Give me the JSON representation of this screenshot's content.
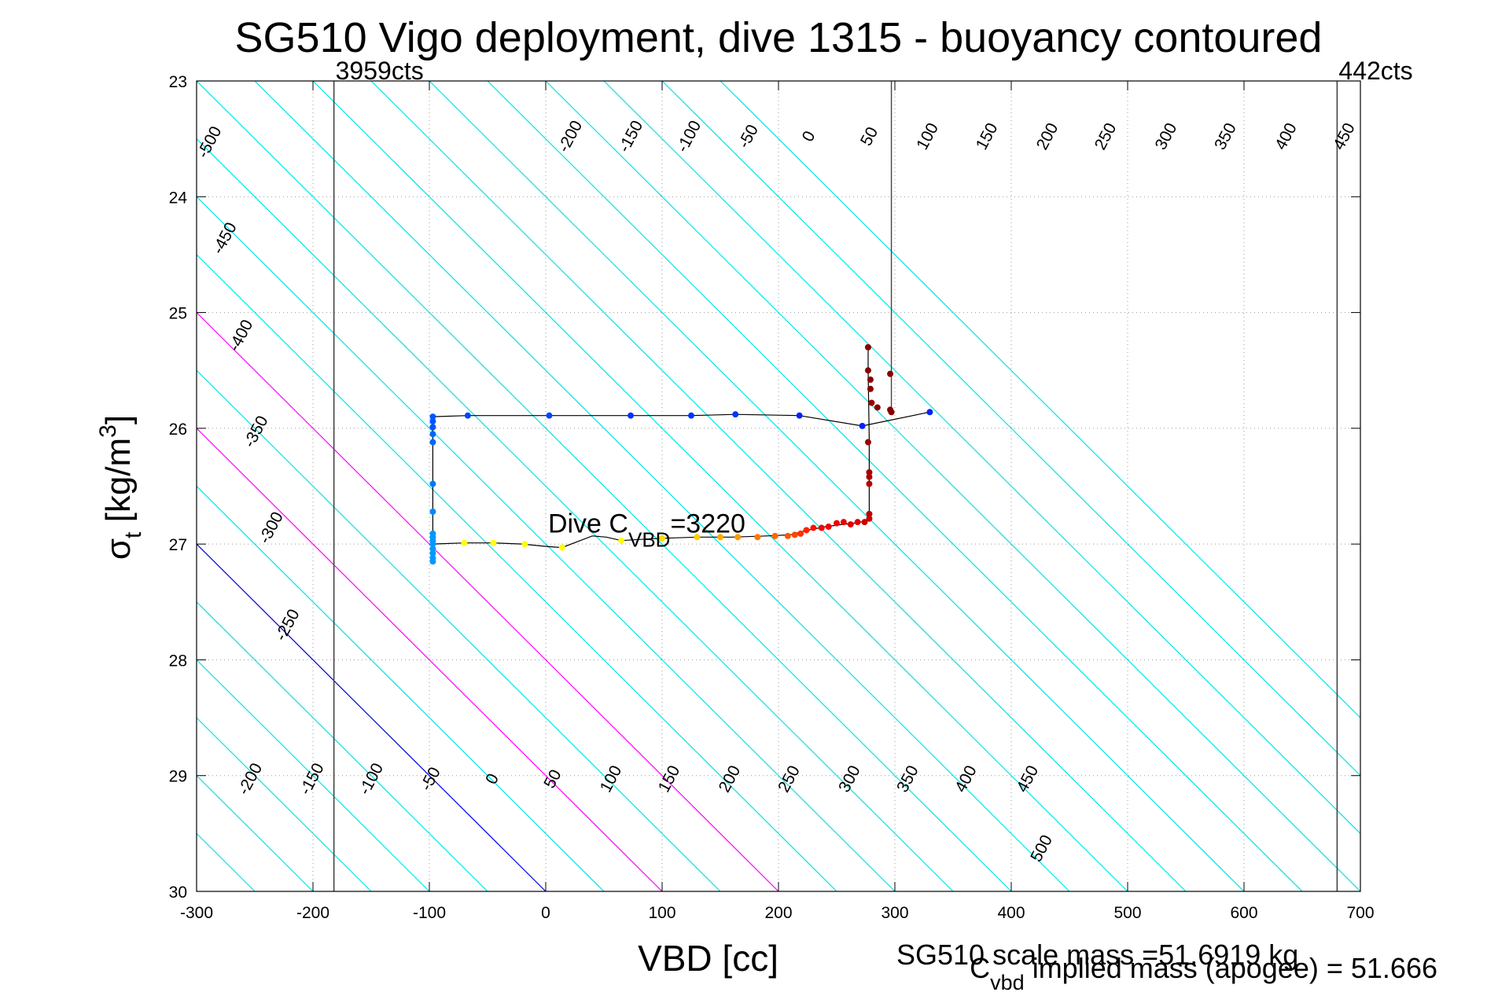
{
  "chart_data": {
    "type": "scatter",
    "title": "SG510 Vigo deployment, dive 1315 - buoyancy contoured",
    "xlabel": "VBD [cc]",
    "ylabel_main": "σ",
    "ylabel_sub": "t",
    "ylabel_rest": " [kg/m",
    "ylabel_sup": "3",
    "ylabel_close": "]",
    "xlim": [
      -300,
      700
    ],
    "ylim": [
      23,
      30
    ],
    "y_reversed": true,
    "grid": true,
    "x_ticks": [
      -300,
      -200,
      -100,
      0,
      100,
      200,
      300,
      400,
      500,
      600,
      700
    ],
    "y_ticks": [
      23,
      24,
      25,
      26,
      27,
      28,
      29,
      30
    ],
    "colors": {
      "contour": "#00e5e5",
      "zero_contour": "#0000dd",
      "highlight_contour": "#ff00ff",
      "limit_line": "#444444",
      "profile_line": "#000000"
    },
    "contours": {
      "levels": [
        -550,
        -500,
        -450,
        -400,
        -350,
        -300,
        -250,
        -200,
        -150,
        -100,
        -50,
        0,
        50,
        100,
        150,
        200,
        250,
        300,
        350,
        400,
        450,
        500,
        550,
        600,
        650,
        700,
        750,
        800,
        850
      ],
      "zero_level": 0,
      "highlight_levels": [
        100,
        200
      ],
      "slope_cc_per_sigma": 100,
      "top_labels": [
        {
          "text": "-500",
          "vbd": -285,
          "sigma": 23.55
        },
        {
          "text": "-450",
          "vbd": -272,
          "sigma": 24.38
        },
        {
          "text": "-400",
          "vbd": -258,
          "sigma": 25.22
        },
        {
          "text": "-350",
          "vbd": -245,
          "sigma": 26.05
        },
        {
          "text": "-300",
          "vbd": -232,
          "sigma": 26.88
        },
        {
          "text": "-250",
          "vbd": -218,
          "sigma": 27.72
        },
        {
          "text": "-200",
          "vbd": 25,
          "sigma": 23.5
        },
        {
          "text": "-150",
          "vbd": 77,
          "sigma": 23.5
        },
        {
          "text": "-100",
          "vbd": 127,
          "sigma": 23.5
        },
        {
          "text": "-50",
          "vbd": 178,
          "sigma": 23.5
        },
        {
          "text": "0",
          "vbd": 230,
          "sigma": 23.5
        },
        {
          "text": "50",
          "vbd": 282,
          "sigma": 23.5
        },
        {
          "text": "100",
          "vbd": 332,
          "sigma": 23.5
        },
        {
          "text": "150",
          "vbd": 383,
          "sigma": 23.5
        },
        {
          "text": "200",
          "vbd": 435,
          "sigma": 23.5
        },
        {
          "text": "250",
          "vbd": 485,
          "sigma": 23.5
        },
        {
          "text": "300",
          "vbd": 537,
          "sigma": 23.5
        },
        {
          "text": "350",
          "vbd": 588,
          "sigma": 23.5
        },
        {
          "text": "400",
          "vbd": 640,
          "sigma": 23.5
        },
        {
          "text": "450",
          "vbd": 690,
          "sigma": 23.5
        }
      ],
      "bottom_labels": [
        {
          "text": "-200",
          "vbd": -250,
          "sigma": 29.05
        },
        {
          "text": "-150",
          "vbd": -197,
          "sigma": 29.05
        },
        {
          "text": "-100",
          "vbd": -146,
          "sigma": 29.05
        },
        {
          "text": "-50",
          "vbd": -95,
          "sigma": 29.05
        },
        {
          "text": "0",
          "vbd": -42,
          "sigma": 29.05
        },
        {
          "text": "50",
          "vbd": 10,
          "sigma": 29.05
        },
        {
          "text": "100",
          "vbd": 60,
          "sigma": 29.05
        },
        {
          "text": "150",
          "vbd": 110,
          "sigma": 29.05
        },
        {
          "text": "200",
          "vbd": 162,
          "sigma": 29.05
        },
        {
          "text": "250",
          "vbd": 213,
          "sigma": 29.05
        },
        {
          "text": "300",
          "vbd": 265,
          "sigma": 29.05
        },
        {
          "text": "350",
          "vbd": 315,
          "sigma": 29.05
        },
        {
          "text": "400",
          "vbd": 365,
          "sigma": 29.05
        },
        {
          "text": "450",
          "vbd": 418,
          "sigma": 29.05
        },
        {
          "text": "500",
          "vbd": 430,
          "sigma": 29.65
        }
      ]
    },
    "limit_lines": [
      {
        "vbd": -182,
        "label": "3959cts"
      },
      {
        "vbd": 680,
        "label": "442cts"
      }
    ],
    "apogee_line": {
      "vbd": 297,
      "sigma_top": 23,
      "sigma_bottom": 25.85
    },
    "dive_cvbd_label": {
      "text_main": "Dive C",
      "text_sub": "VBD",
      "text_rest": "=3220",
      "vbd": 2,
      "sigma": 26.9
    },
    "footer": {
      "scale_mass": "SG510 scale mass =51.6919 kg",
      "implied_main": "C",
      "implied_sub": "vbd",
      "implied_rest": " implied mass (apogee) = 51.666"
    },
    "series": [
      {
        "role": "dive",
        "line": [
          [
            -97,
            27.05
          ],
          [
            -97,
            27.0
          ],
          [
            -70,
            26.99
          ],
          [
            -45,
            26.99
          ],
          [
            -20,
            27.0
          ],
          [
            0,
            27.02
          ],
          [
            14,
            27.03
          ],
          [
            40,
            26.93
          ],
          [
            52,
            26.94
          ],
          [
            65,
            26.97
          ],
          [
            80,
            26.96
          ],
          [
            100,
            26.95
          ],
          [
            130,
            26.94
          ],
          [
            160,
            26.94
          ],
          [
            190,
            26.93
          ],
          [
            210,
            26.92
          ],
          [
            225,
            26.88
          ],
          [
            240,
            26.85
          ],
          [
            255,
            26.83
          ],
          [
            265,
            26.82
          ],
          [
            276,
            26.8
          ],
          [
            278,
            26.75
          ],
          [
            278,
            26.55
          ],
          [
            278,
            26.4
          ],
          [
            278,
            26.1
          ],
          [
            277,
            25.5
          ],
          [
            277,
            25.3
          ]
        ],
        "points": [
          {
            "x": -97,
            "y": 27.07,
            "c": "#ffff00"
          },
          {
            "x": -70,
            "y": 26.99,
            "c": "#ffff00"
          },
          {
            "x": -45,
            "y": 26.99,
            "c": "#ffff00"
          },
          {
            "x": -18,
            "y": 27.0,
            "c": "#ffff00"
          },
          {
            "x": 14,
            "y": 27.03,
            "c": "#ffff00"
          },
          {
            "x": 65,
            "y": 26.97,
            "c": "#ffff00"
          },
          {
            "x": 100,
            "y": 26.95,
            "c": "#ffdd00"
          },
          {
            "x": 130,
            "y": 26.94,
            "c": "#ffcc00"
          },
          {
            "x": 150,
            "y": 26.94,
            "c": "#ffaa00"
          },
          {
            "x": 165,
            "y": 26.94,
            "c": "#ff9900"
          },
          {
            "x": 182,
            "y": 26.94,
            "c": "#ff7700"
          },
          {
            "x": 197,
            "y": 26.93,
            "c": "#ff6600"
          },
          {
            "x": 208,
            "y": 26.93,
            "c": "#ff5500"
          },
          {
            "x": 214,
            "y": 26.92,
            "c": "#ff4400"
          },
          {
            "x": 219,
            "y": 26.91,
            "c": "#ff3300"
          },
          {
            "x": 224,
            "y": 26.88,
            "c": "#ff2200"
          },
          {
            "x": 230,
            "y": 26.86,
            "c": "#ff1100"
          },
          {
            "x": 237,
            "y": 26.86,
            "c": "#ff0000"
          },
          {
            "x": 243,
            "y": 26.85,
            "c": "#ee0000"
          },
          {
            "x": 250,
            "y": 26.82,
            "c": "#ee0000"
          },
          {
            "x": 256,
            "y": 26.81,
            "c": "#ee0000"
          },
          {
            "x": 262,
            "y": 26.83,
            "c": "#dd0000"
          },
          {
            "x": 268,
            "y": 26.81,
            "c": "#dd0000"
          },
          {
            "x": 274,
            "y": 26.81,
            "c": "#cc0000"
          },
          {
            "x": 278,
            "y": 26.78,
            "c": "#cc0000"
          },
          {
            "x": 278,
            "y": 26.74,
            "c": "#bb0000"
          },
          {
            "x": 278,
            "y": 26.48,
            "c": "#bb0000"
          },
          {
            "x": 278,
            "y": 26.42,
            "c": "#aa0000"
          },
          {
            "x": 278,
            "y": 26.38,
            "c": "#aa0000"
          },
          {
            "x": 277,
            "y": 26.12,
            "c": "#990000"
          },
          {
            "x": 280,
            "y": 25.78,
            "c": "#990000"
          },
          {
            "x": 279,
            "y": 25.66,
            "c": "#880000"
          },
          {
            "x": 279,
            "y": 25.58,
            "c": "#880000"
          },
          {
            "x": 277,
            "y": 25.5,
            "c": "#880000"
          },
          {
            "x": 277,
            "y": 25.3,
            "c": "#880000"
          },
          {
            "x": 285,
            "y": 25.82,
            "c": "#880000"
          },
          {
            "x": 296,
            "y": 25.84,
            "c": "#880000"
          },
          {
            "x": 297,
            "y": 25.86,
            "c": "#880000"
          },
          {
            "x": 296,
            "y": 25.53,
            "c": "#880000"
          }
        ]
      },
      {
        "role": "climb",
        "line": [
          [
            -97,
            27.15
          ],
          [
            -97,
            26.95
          ],
          [
            -97,
            26.5
          ],
          [
            -97,
            26.0
          ],
          [
            -97,
            25.9
          ],
          [
            -67,
            25.89
          ],
          [
            3,
            25.89
          ],
          [
            73,
            25.89
          ],
          [
            125,
            25.89
          ],
          [
            163,
            25.88
          ],
          [
            218,
            25.89
          ],
          [
            272,
            25.98
          ],
          [
            330,
            25.86
          ]
        ],
        "points": [
          {
            "x": -97,
            "y": 27.15,
            "c": "#0099ff"
          },
          {
            "x": -97,
            "y": 27.12,
            "c": "#0099ff"
          },
          {
            "x": -97,
            "y": 27.08,
            "c": "#0099ff"
          },
          {
            "x": -97,
            "y": 27.04,
            "c": "#0099ff"
          },
          {
            "x": -97,
            "y": 27.0,
            "c": "#0099ff"
          },
          {
            "x": -97,
            "y": 26.97,
            "c": "#0099ff"
          },
          {
            "x": -97,
            "y": 26.94,
            "c": "#0099ff"
          },
          {
            "x": -97,
            "y": 26.91,
            "c": "#0099ff"
          },
          {
            "x": -97,
            "y": 26.72,
            "c": "#0088ff"
          },
          {
            "x": -97,
            "y": 26.48,
            "c": "#0077ff"
          },
          {
            "x": -97,
            "y": 26.12,
            "c": "#0066ff"
          },
          {
            "x": -97,
            "y": 26.05,
            "c": "#0066ff"
          },
          {
            "x": -97,
            "y": 25.99,
            "c": "#0055ff"
          },
          {
            "x": -97,
            "y": 25.94,
            "c": "#0055ff"
          },
          {
            "x": -97,
            "y": 25.9,
            "c": "#0055ff"
          },
          {
            "x": -67,
            "y": 25.89,
            "c": "#0044ff"
          },
          {
            "x": 3,
            "y": 25.89,
            "c": "#0044ff"
          },
          {
            "x": 73,
            "y": 25.89,
            "c": "#0033ff"
          },
          {
            "x": 125,
            "y": 25.89,
            "c": "#0033ff"
          },
          {
            "x": 163,
            "y": 25.88,
            "c": "#0033ff"
          },
          {
            "x": 218,
            "y": 25.89,
            "c": "#0022ff"
          },
          {
            "x": 272,
            "y": 25.98,
            "c": "#0022ff"
          },
          {
            "x": 330,
            "y": 25.86,
            "c": "#0022ff"
          }
        ]
      }
    ]
  }
}
